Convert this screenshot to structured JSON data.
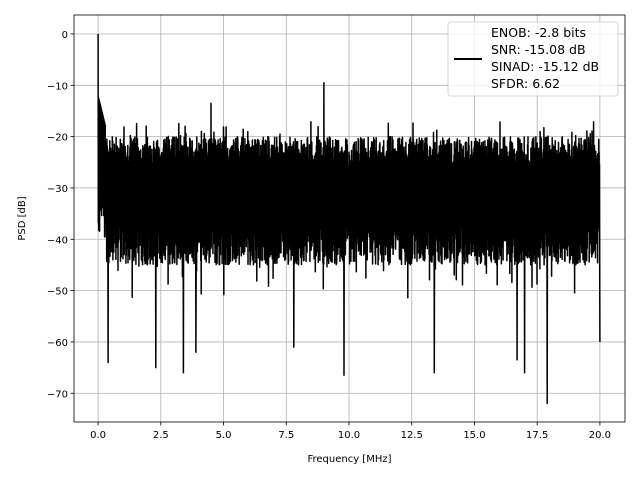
{
  "chart_data": {
    "type": "line",
    "title": "",
    "xlabel": "Frequency [MHz]",
    "ylabel": "PSD [dB]",
    "xlim": [
      -0.96,
      21.0
    ],
    "ylim": [
      -75.6,
      3.7
    ],
    "xticks": [
      0,
      2.5,
      5,
      7.5,
      10,
      12.5,
      15,
      17.5,
      20
    ],
    "xtick_labels": [
      "0.0",
      "2.5",
      "5.0",
      "7.5",
      "10.0",
      "12.5",
      "15.0",
      "17.5",
      "20.0"
    ],
    "yticks": [
      0,
      -10,
      -20,
      -30,
      -40,
      -50,
      -60,
      -70
    ],
    "ytick_labels": [
      "0",
      "−10",
      "−20",
      "−30",
      "−40",
      "−50",
      "−60",
      "−70"
    ],
    "grid": true,
    "line_color": "#000000",
    "legend_placement": "top-right",
    "legend": [
      "ENOB: -2.8 bits",
      "SNR: -15.08 dB",
      "SINAD: -15.12 dB",
      "SFDR: 6.62"
    ],
    "x_range": [
      0,
      20
    ],
    "noise_floor_band_db": [
      -45,
      -20
    ],
    "notable_points": [
      {
        "x": 0.0,
        "y": 0.0
      },
      {
        "x": 0.4,
        "y": -64
      },
      {
        "x": 2.3,
        "y": -65
      },
      {
        "x": 3.4,
        "y": -66
      },
      {
        "x": 3.9,
        "y": -62
      },
      {
        "x": 4.5,
        "y": -13.5
      },
      {
        "x": 7.8,
        "y": -61
      },
      {
        "x": 9.0,
        "y": -9.5
      },
      {
        "x": 9.8,
        "y": -66.5
      },
      {
        "x": 13.4,
        "y": -66
      },
      {
        "x": 16.7,
        "y": -63.5
      },
      {
        "x": 17.0,
        "y": -66
      },
      {
        "x": 17.9,
        "y": -72
      },
      {
        "x": 20.0,
        "y": -60
      }
    ]
  }
}
